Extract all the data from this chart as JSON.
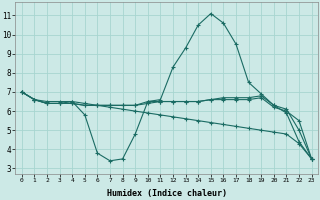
{
  "xlabel": "Humidex (Indice chaleur)",
  "bg_color": "#cce9e6",
  "grid_color": "#a8d5d0",
  "line_color": "#1a6b63",
  "x_ticks": [
    0,
    1,
    2,
    3,
    4,
    5,
    6,
    7,
    8,
    9,
    10,
    11,
    12,
    13,
    14,
    15,
    16,
    17,
    18,
    19,
    20,
    21,
    22,
    23
  ],
  "y_ticks": [
    3,
    4,
    5,
    6,
    7,
    8,
    9,
    10,
    11
  ],
  "xlim": [
    -0.5,
    23.5
  ],
  "ylim": [
    2.7,
    11.7
  ],
  "series": [
    {
      "x": [
        0,
        1,
        2,
        3,
        4,
        5,
        6,
        7,
        8,
        9,
        10,
        11,
        12,
        13,
        14,
        15,
        16,
        17,
        18,
        19,
        20,
        21,
        22,
        23
      ],
      "y": [
        7.0,
        6.6,
        6.4,
        6.4,
        6.5,
        5.8,
        3.8,
        3.4,
        3.5,
        4.8,
        6.5,
        6.6,
        8.3,
        9.3,
        10.5,
        11.1,
        10.6,
        9.5,
        7.5,
        6.9,
        6.3,
        5.9,
        4.4,
        3.5
      ]
    },
    {
      "x": [
        0,
        1,
        2,
        3,
        4,
        5,
        6,
        7,
        8,
        9,
        10,
        11,
        12,
        13,
        14,
        15,
        16,
        17,
        18,
        19,
        20,
        21,
        22,
        23
      ],
      "y": [
        7.0,
        6.6,
        6.4,
        6.4,
        6.4,
        6.3,
        6.3,
        6.3,
        6.3,
        6.3,
        6.4,
        6.5,
        6.5,
        6.5,
        6.5,
        6.6,
        6.7,
        6.7,
        6.7,
        6.8,
        6.3,
        6.1,
        5.0,
        3.5
      ]
    },
    {
      "x": [
        0,
        1,
        2,
        3,
        4,
        5,
        6,
        7,
        8,
        9,
        10,
        11,
        12,
        13,
        14,
        15,
        16,
        17,
        18,
        19,
        20,
        21,
        22,
        23
      ],
      "y": [
        7.0,
        6.6,
        6.5,
        6.5,
        6.5,
        6.4,
        6.3,
        6.2,
        6.1,
        6.0,
        5.9,
        5.8,
        5.7,
        5.6,
        5.5,
        5.4,
        5.3,
        5.2,
        5.1,
        5.0,
        4.9,
        4.8,
        4.3,
        3.5
      ]
    },
    {
      "x": [
        0,
        1,
        2,
        3,
        4,
        5,
        6,
        7,
        8,
        9,
        10,
        11,
        12,
        13,
        14,
        15,
        16,
        17,
        18,
        19,
        20,
        21,
        22,
        23
      ],
      "y": [
        7.0,
        6.6,
        6.4,
        6.4,
        6.4,
        6.3,
        6.3,
        6.3,
        6.3,
        6.3,
        6.5,
        6.5,
        6.5,
        6.5,
        6.5,
        6.6,
        6.6,
        6.6,
        6.6,
        6.7,
        6.2,
        6.0,
        5.5,
        3.5
      ]
    }
  ]
}
